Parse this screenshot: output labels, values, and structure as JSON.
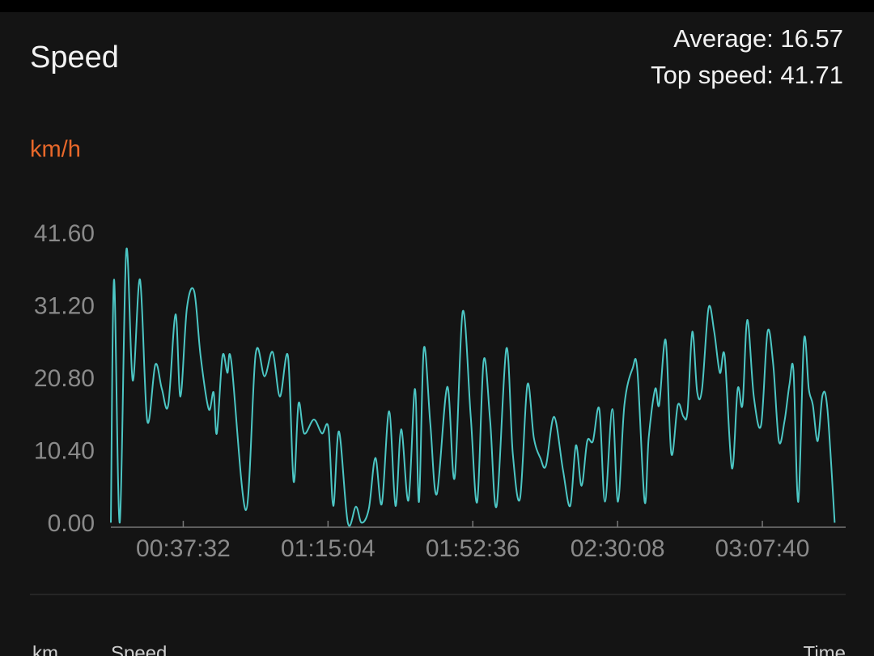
{
  "header": {
    "title": "Speed",
    "average": "Average: 16.57",
    "top_speed": "Top speed: 41.71"
  },
  "chart_data": {
    "type": "line",
    "y_label": "km/h",
    "x": [
      1126,
      1176,
      1264,
      1365,
      1466,
      1579,
      1692,
      1818,
      1919,
      2019,
      2132,
      2208,
      2309,
      2422,
      2522,
      2648,
      2724,
      2774,
      2862,
      2938,
      3000,
      3227,
      3378,
      3516,
      3642,
      3755,
      3881,
      3969,
      4045,
      4133,
      4284,
      4409,
      4510,
      4586,
      4674,
      4812,
      4938,
      5026,
      5139,
      5240,
      5340,
      5454,
      5554,
      5642,
      5755,
      5856,
      5919,
      5994,
      6095,
      6196,
      6359,
      6473,
      6599,
      6724,
      6825,
      6925,
      7026,
      7127,
      7278,
      7378,
      7491,
      7605,
      7705,
      7806,
      7894,
      8020,
      8158,
      8271,
      8360,
      8448,
      8536,
      8624,
      8724,
      8812,
      8926,
      9014,
      9114,
      9240,
      9316,
      9429,
      9492,
      9593,
      9655,
      9756,
      9844,
      9945,
      10033,
      10096,
      10171,
      10247,
      10322,
      10423,
      10511,
      10599,
      10674,
      10787,
      10876,
      10951,
      11026,
      11127,
      11240,
      11341,
      11429,
      11517,
      11605,
      11681,
      11744,
      11819,
      11907,
      11982,
      12045,
      12121,
      12196,
      12272,
      12385
    ],
    "series": [
      {
        "name": "Speed",
        "color": "#4cc6c4",
        "values": [
          0.3,
          35.2,
          0.3,
          39.3,
          20.7,
          35.2,
          14.9,
          23,
          19.5,
          17.2,
          30.2,
          18.4,
          31.1,
          33.5,
          24.2,
          16.6,
          19,
          13.1,
          24.2,
          21.8,
          23.4,
          2.1,
          24.5,
          21.3,
          24.8,
          18.4,
          24.2,
          6.2,
          17.4,
          13.1,
          15.1,
          13.1,
          13.9,
          2.7,
          13.4,
          0.3,
          2.6,
          0.3,
          2.3,
          9.6,
          3,
          16.3,
          2.7,
          13.7,
          3.5,
          19.5,
          3.3,
          25.3,
          14.5,
          4.4,
          19.8,
          6.7,
          30.6,
          15.5,
          3.3,
          23.6,
          14.9,
          2.7,
          25.3,
          10.2,
          3.8,
          20.1,
          12.5,
          9.6,
          8.5,
          15.5,
          7.9,
          2.7,
          11.4,
          5.6,
          12,
          12,
          16.6,
          3.3,
          16.6,
          3.3,
          17.2,
          22.4,
          22.1,
          3.3,
          12.5,
          19.5,
          17.2,
          26.5,
          10.2,
          17.2,
          15.5,
          16.3,
          27.7,
          19,
          19.5,
          31.1,
          27.7,
          21.8,
          24.2,
          8.1,
          19.5,
          17.2,
          29.4,
          18.4,
          14.3,
          27.7,
          23,
          12,
          14.9,
          20.1,
          22.1,
          3.3,
          26.5,
          19.5,
          17.2,
          12,
          18.6,
          16.6,
          0.3
        ]
      }
    ],
    "xlim": [
      1126,
      12556
    ],
    "xticks": [
      {
        "value": 2252,
        "label": "00:37:32"
      },
      {
        "value": 4504,
        "label": "01:15:04"
      },
      {
        "value": 6756,
        "label": "01:52:36"
      },
      {
        "value": 9008,
        "label": "02:30:08"
      },
      {
        "value": 11260,
        "label": "03:07:40"
      }
    ],
    "ylim": [
      0,
      41.6
    ],
    "yticks": [
      {
        "value": 0,
        "label": "0.00"
      },
      {
        "value": 10.4,
        "label": "10.40"
      },
      {
        "value": 20.8,
        "label": "20.80"
      },
      {
        "value": 31.2,
        "label": "31.20"
      },
      {
        "value": 41.6,
        "label": "41.60"
      }
    ],
    "grid": false
  },
  "footer": {
    "labels": [
      "km",
      "Speed",
      "Time"
    ]
  }
}
